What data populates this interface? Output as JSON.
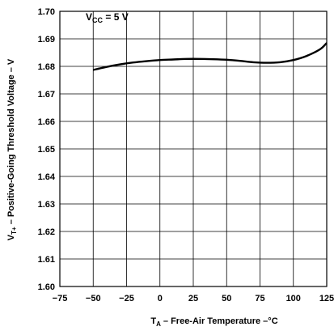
{
  "chart_data": {
    "type": "line",
    "title": "",
    "xlabel": {
      "main": "T",
      "sub": "A",
      "rest": " – Free-Air Temperature –°C"
    },
    "ylabel": {
      "main": "V",
      "sub": "T+",
      "rest": " – Positive-Going Threshold Voltage – V"
    },
    "annotation": {
      "main": "V",
      "sub": "CC",
      "rest": " = 5 V"
    },
    "xlim": [
      -75,
      125
    ],
    "ylim": [
      1.6,
      1.7
    ],
    "xticks": [
      "−75",
      "−50",
      "−25",
      "0",
      "25",
      "50",
      "75",
      "100",
      "125"
    ],
    "xtick_values": [
      -75,
      -50,
      -25,
      0,
      25,
      50,
      75,
      100,
      125
    ],
    "yticks": [
      "1.60",
      "1.61",
      "1.62",
      "1.63",
      "1.64",
      "1.65",
      "1.66",
      "1.67",
      "1.68",
      "1.69",
      "1.70"
    ],
    "ytick_values": [
      1.6,
      1.61,
      1.62,
      1.63,
      1.64,
      1.65,
      1.66,
      1.67,
      1.68,
      1.69,
      1.7
    ],
    "grid": true,
    "series": [
      {
        "x": [
          -50,
          -40,
          -30,
          -20,
          -10,
          0,
          10,
          20,
          30,
          40,
          50,
          60,
          70,
          80,
          90,
          100,
          110,
          120,
          125
        ],
        "y": [
          1.6787,
          1.6798,
          1.6807,
          1.6814,
          1.6819,
          1.6823,
          1.6825,
          1.6827,
          1.6827,
          1.6826,
          1.6824,
          1.682,
          1.6815,
          1.6813,
          1.6815,
          1.6823,
          1.6838,
          1.6862,
          1.6885
        ]
      }
    ]
  }
}
